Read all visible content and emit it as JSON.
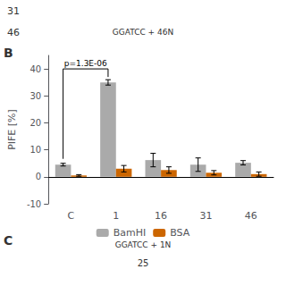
{
  "chart_data": {
    "type": "bar",
    "categories": [
      "C",
      "1",
      "16",
      "31",
      "46"
    ],
    "series": [
      {
        "name": "BamHI",
        "color": "#aaaaaa",
        "values": [
          4.5,
          35.0,
          6.2,
          4.5,
          5.2
        ],
        "errors": [
          0.5,
          1.0,
          2.5,
          2.5,
          0.8
        ]
      },
      {
        "name": "BSA",
        "color": "#CC6600",
        "values": [
          0.5,
          3.0,
          2.5,
          1.5,
          1.0
        ],
        "errors": [
          0.3,
          1.2,
          1.2,
          0.8,
          0.8
        ]
      }
    ],
    "ylabel": "PIFE [%]",
    "ylim": [
      -10,
      45
    ],
    "yticks": [
      -10,
      0,
      10,
      20,
      30,
      40
    ],
    "grid": false,
    "legend": "bottom",
    "significance": {
      "series": "BamHI",
      "from": "C",
      "to": "1",
      "y": 40,
      "label": "p=1.3E-06"
    },
    "annotations": [
      "B",
      "31",
      "46",
      "GGATCC + 46N",
      "C",
      "GGATCC + 1N",
      "25"
    ]
  }
}
